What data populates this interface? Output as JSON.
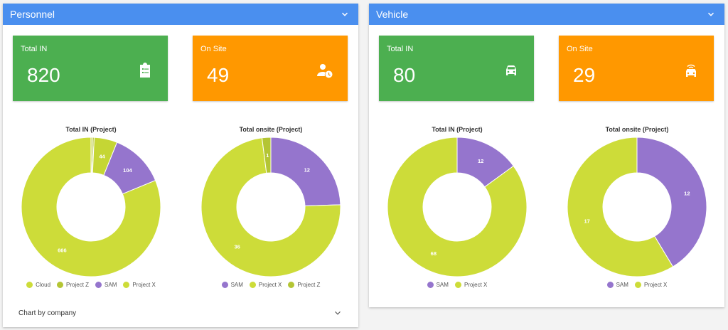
{
  "panels": [
    {
      "title": "Personnel",
      "cards": [
        {
          "label": "Total IN",
          "value": "820",
          "color": "#4caf50",
          "icon": "clipboard-list-icon"
        },
        {
          "label": "On Site",
          "value": "49",
          "color": "#ff9800",
          "icon": "person-clock-icon"
        }
      ],
      "footer_label": "Chart by company"
    },
    {
      "title": "Vehicle",
      "cards": [
        {
          "label": "Total IN",
          "value": "80",
          "color": "#4caf50",
          "icon": "car-icon"
        },
        {
          "label": "On Site",
          "value": "29",
          "color": "#ff9800",
          "icon": "taxi-icon"
        }
      ]
    }
  ],
  "chart_data": [
    {
      "type": "pie",
      "title": "Total IN (Project)",
      "series": [
        {
          "name": "Cloud",
          "value": 3,
          "color": "#bfcd33",
          "label": ""
        },
        {
          "name": "Project Z",
          "value": 3,
          "color": "#b4c534",
          "label": ""
        },
        {
          "name": "Project Z",
          "value": 44,
          "color": "#c5d634",
          "label": "44"
        },
        {
          "name": "SAM",
          "value": 104,
          "color": "#9575cd",
          "label": "104"
        },
        {
          "name": "Project X",
          "value": 666,
          "color": "#cddc39",
          "label": "666"
        }
      ],
      "legend": [
        {
          "name": "Cloud",
          "color": "#cddc39"
        },
        {
          "name": "Project Z",
          "color": "#b4c534"
        },
        {
          "name": "SAM",
          "color": "#9575cd"
        },
        {
          "name": "Project X",
          "color": "#cddc39"
        }
      ]
    },
    {
      "type": "pie",
      "title": "Total onsite (Project)",
      "series": [
        {
          "name": "SAM",
          "value": 12,
          "color": "#9575cd",
          "label": "12"
        },
        {
          "name": "Project X",
          "value": 36,
          "color": "#cddc39",
          "label": "36"
        },
        {
          "name": "Project Z",
          "value": 1,
          "color": "#b4c534",
          "label": "1"
        }
      ],
      "legend": [
        {
          "name": "SAM",
          "color": "#9575cd"
        },
        {
          "name": "Project X",
          "color": "#cddc39"
        },
        {
          "name": "Project Z",
          "color": "#b4c534"
        }
      ]
    },
    {
      "type": "pie",
      "title": "Total IN (Project)",
      "series": [
        {
          "name": "SAM",
          "value": 12,
          "color": "#9575cd",
          "label": "12"
        },
        {
          "name": "Project X",
          "value": 68,
          "color": "#cddc39",
          "label": "68"
        }
      ],
      "legend": [
        {
          "name": "SAM",
          "color": "#9575cd"
        },
        {
          "name": "Project X",
          "color": "#cddc39"
        }
      ]
    },
    {
      "type": "pie",
      "title": "Total onsite (Project)",
      "series": [
        {
          "name": "SAM",
          "value": 12,
          "color": "#9575cd",
          "label": "12"
        },
        {
          "name": "Project X",
          "value": 17,
          "color": "#cddc39",
          "label": "17"
        }
      ],
      "legend": [
        {
          "name": "SAM",
          "color": "#9575cd"
        },
        {
          "name": "Project X",
          "color": "#cddc39"
        }
      ]
    }
  ]
}
